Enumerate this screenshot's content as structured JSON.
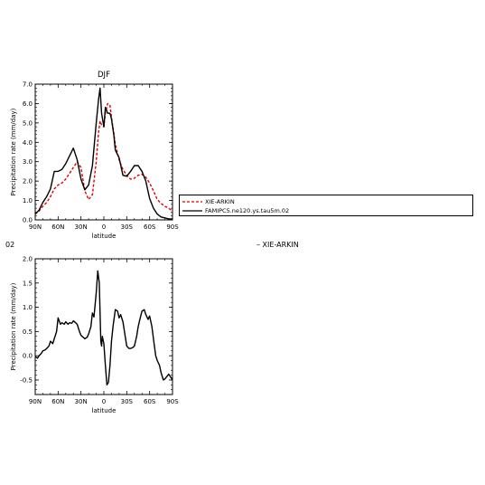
{
  "chart_data": [
    {
      "type": "line",
      "title": "DJF",
      "xlabel": "latitude",
      "ylabel": "Precipitation rate (mm/day)",
      "x_ticklabels": [
        "90N",
        "60N",
        "30N",
        "0",
        "30S",
        "60S",
        "90S"
      ],
      "xlim": [
        90,
        -90
      ],
      "ylim": [
        0,
        7
      ],
      "y_ticklabels": [
        "0.0",
        "1.0",
        "2.0",
        "3.0",
        "4.0",
        "5.0",
        "6.0",
        "7.0"
      ],
      "series": [
        {
          "name": "XIE-ARKIN",
          "color": "#e00000",
          "dash": true,
          "x": [
            90,
            85,
            80,
            75,
            70,
            65,
            60,
            55,
            50,
            45,
            40,
            35,
            30,
            25,
            20,
            15,
            10,
            7,
            5,
            3,
            0,
            -2,
            -5,
            -8,
            -10,
            -13,
            -15,
            -20,
            -25,
            -30,
            -35,
            -40,
            -45,
            -50,
            -55,
            -60,
            -65,
            -70,
            -75,
            -80,
            -85,
            -90
          ],
          "y": [
            0.3,
            0.45,
            0.7,
            0.9,
            1.2,
            1.6,
            1.8,
            1.9,
            2.1,
            2.4,
            2.7,
            3.0,
            2.7,
            1.5,
            1.05,
            1.3,
            3.0,
            4.5,
            5.1,
            4.9,
            4.8,
            5.5,
            6.0,
            5.9,
            5.3,
            4.5,
            3.9,
            3.1,
            2.6,
            2.3,
            2.1,
            2.15,
            2.3,
            2.35,
            2.2,
            1.9,
            1.5,
            1.05,
            0.85,
            0.7,
            0.6,
            0.45
          ]
        },
        {
          "name": "FAMIPC5.ne120.ys.tau5m.02",
          "color": "#000000",
          "dash": false,
          "x": [
            90,
            85,
            80,
            75,
            70,
            65,
            60,
            55,
            50,
            45,
            40,
            35,
            30,
            25,
            20,
            15,
            10,
            7,
            5,
            3,
            0,
            -2,
            -5,
            -8,
            -10,
            -13,
            -15,
            -20,
            -25,
            -30,
            -35,
            -40,
            -45,
            -50,
            -55,
            -60,
            -65,
            -70,
            -75,
            -80,
            -85,
            -90
          ],
          "y": [
            0.3,
            0.5,
            0.9,
            1.2,
            1.6,
            2.5,
            2.5,
            2.6,
            2.9,
            3.3,
            3.7,
            3.1,
            2.1,
            1.55,
            1.8,
            2.8,
            5.0,
            6.2,
            6.8,
            5.5,
            4.8,
            5.8,
            5.5,
            5.5,
            5.2,
            4.4,
            3.6,
            3.2,
            2.3,
            2.25,
            2.5,
            2.8,
            2.8,
            2.5,
            2.0,
            1.1,
            0.6,
            0.3,
            0.15,
            0.1,
            0.05,
            0.05
          ]
        }
      ]
    },
    {
      "type": "line",
      "title": "",
      "xlabel": "latitude",
      "ylabel": "Precipitation rate (mm/day)",
      "x_ticklabels": [
        "90N",
        "60N",
        "30N",
        "0",
        "30S",
        "60S",
        "90S"
      ],
      "xlim": [
        90,
        -90
      ],
      "ylim": [
        -0.8,
        2.0
      ],
      "y_ticklabels": [
        "-0.5",
        "0.0",
        "0.5",
        "1.0",
        "1.5",
        "2.0"
      ],
      "series": [
        {
          "name": "",
          "color": "#000000",
          "dash": false,
          "x": [
            90,
            87,
            85,
            82,
            80,
            77,
            75,
            72,
            70,
            67,
            65,
            62,
            60,
            57,
            55,
            52,
            50,
            47,
            45,
            42,
            40,
            37,
            35,
            32,
            30,
            27,
            25,
            22,
            20,
            17,
            15,
            13,
            10,
            8,
            6,
            5,
            4,
            3,
            2,
            0,
            -2,
            -4,
            -6,
            -8,
            -10,
            -12,
            -15,
            -18,
            -20,
            -22,
            -25,
            -28,
            -30,
            -33,
            -35,
            -38,
            -40,
            -43,
            -45,
            -48,
            -50,
            -53,
            -55,
            -58,
            -60,
            -63,
            -65,
            -68,
            -70,
            -73,
            -75,
            -78,
            -80,
            -83,
            -85,
            -88,
            -90
          ],
          "y": [
            -0.02,
            -0.05,
            0.0,
            0.05,
            0.1,
            0.12,
            0.15,
            0.2,
            0.3,
            0.25,
            0.35,
            0.5,
            0.78,
            0.65,
            0.68,
            0.65,
            0.7,
            0.65,
            0.68,
            0.67,
            0.72,
            0.68,
            0.65,
            0.5,
            0.42,
            0.38,
            0.35,
            0.38,
            0.45,
            0.6,
            0.88,
            0.8,
            1.3,
            1.75,
            1.5,
            0.9,
            0.3,
            0.2,
            0.4,
            0.25,
            -0.2,
            -0.6,
            -0.55,
            -0.2,
            0.3,
            0.6,
            0.95,
            0.92,
            0.78,
            0.85,
            0.7,
            0.4,
            0.2,
            0.15,
            0.15,
            0.17,
            0.2,
            0.4,
            0.6,
            0.8,
            0.92,
            0.95,
            0.85,
            0.75,
            0.82,
            0.6,
            0.35,
            0.0,
            -0.1,
            -0.2,
            -0.35,
            -0.5,
            -0.48,
            -0.42,
            -0.38,
            -0.45,
            -0.5
          ]
        }
      ]
    }
  ],
  "page": {
    "panel2_label": "02",
    "extra_legend_text": "XIE-ARKIN"
  }
}
